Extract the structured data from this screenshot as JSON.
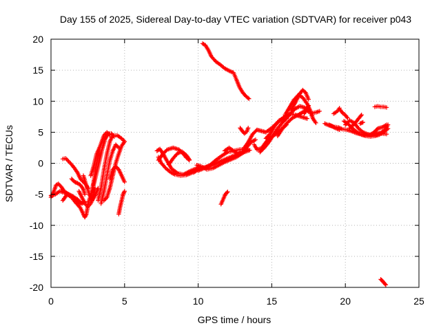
{
  "chart_data": {
    "type": "scatter",
    "title": "Day 155 of 2025, Sidereal Day-to-day VTEC variation (SDTVAR) for receiver p043",
    "xlabel": "GPS time / hours",
    "ylabel": "SDTVAR / TECUs",
    "xlim": [
      0,
      25
    ],
    "ylim": [
      -20,
      20
    ],
    "xticks": [
      0,
      5,
      10,
      15,
      20,
      25
    ],
    "yticks": [
      -20,
      -15,
      -10,
      -5,
      0,
      5,
      10,
      15,
      20
    ],
    "grid": true,
    "marker": "+",
    "color": "#ff0000",
    "segments": [
      [
        [
          0.0,
          -5.5
        ],
        [
          0.2,
          -4.5
        ],
        [
          0.35,
          -3.5
        ],
        [
          0.5,
          -3.3
        ],
        [
          0.7,
          -3.8
        ],
        [
          0.9,
          -4.5
        ],
        [
          1.2,
          -5.0
        ],
        [
          1.5,
          -5.5
        ],
        [
          1.8,
          -6.2
        ],
        [
          2.0,
          -6.5
        ]
      ],
      [
        [
          0.0,
          -5.2
        ],
        [
          0.3,
          -5.0
        ],
        [
          0.6,
          -4.5
        ],
        [
          1.0,
          -4.8
        ],
        [
          1.4,
          -5.2
        ],
        [
          1.8,
          -5.8
        ],
        [
          2.1,
          -6.5
        ],
        [
          2.3,
          -6.2
        ]
      ],
      [
        [
          0.8,
          -6.0
        ],
        [
          1.1,
          -5.0
        ],
        [
          1.4,
          -5.5
        ],
        [
          1.7,
          -6.4
        ],
        [
          2.0,
          -7.2
        ],
        [
          2.2,
          -8.2
        ],
        [
          2.3,
          -8.7
        ],
        [
          2.4,
          -8.2
        ],
        [
          2.5,
          -7.0
        ]
      ],
      [
        [
          0.8,
          0.7
        ],
        [
          1.0,
          0.8
        ],
        [
          1.2,
          0.3
        ],
        [
          1.4,
          -0.2
        ],
        [
          1.6,
          -0.8
        ],
        [
          1.8,
          -1.5
        ],
        [
          2.0,
          -2.5
        ],
        [
          2.2,
          -3.0
        ],
        [
          2.4,
          -3.5
        ],
        [
          2.5,
          -4.0
        ]
      ],
      [
        [
          1.4,
          -2.5
        ],
        [
          1.6,
          -3.0
        ],
        [
          1.8,
          -3.2
        ],
        [
          2.0,
          -3.5
        ],
        [
          2.2,
          -4.2
        ],
        [
          2.3,
          -5.0
        ]
      ],
      [
        [
          1.9,
          -4.5
        ],
        [
          2.1,
          -5.5
        ],
        [
          2.3,
          -6.5
        ],
        [
          2.5,
          -7.0
        ],
        [
          2.7,
          -6.5
        ],
        [
          2.85,
          -5.5
        ],
        [
          3.0,
          -4.0
        ]
      ],
      [
        [
          2.2,
          -2.0
        ],
        [
          2.4,
          -3.5
        ],
        [
          2.6,
          -5.0
        ],
        [
          2.8,
          -6.0
        ],
        [
          3.0,
          -5.2
        ],
        [
          3.2,
          -4.0
        ]
      ],
      [
        [
          2.5,
          -6.5
        ],
        [
          2.7,
          -5.2
        ],
        [
          2.9,
          -3.0
        ],
        [
          3.0,
          -1.5
        ],
        [
          3.1,
          0.0
        ],
        [
          3.2,
          1.5
        ],
        [
          3.3,
          2.5
        ]
      ],
      [
        [
          2.7,
          -2.0
        ],
        [
          2.9,
          -0.5
        ],
        [
          3.1,
          1.5
        ],
        [
          3.3,
          2.5
        ],
        [
          3.45,
          3.5
        ],
        [
          3.6,
          4.5
        ],
        [
          3.8,
          5.0
        ],
        [
          4.0,
          4.5
        ]
      ],
      [
        [
          2.9,
          -3.5
        ],
        [
          3.1,
          -1.5
        ],
        [
          3.3,
          0.5
        ],
        [
          3.5,
          2.5
        ],
        [
          3.7,
          4.0
        ],
        [
          3.9,
          4.8
        ],
        [
          4.1,
          4.8
        ],
        [
          4.3,
          4.3
        ]
      ],
      [
        [
          3.2,
          -6.0
        ],
        [
          3.4,
          -4.0
        ],
        [
          3.6,
          -1.0
        ],
        [
          3.8,
          1.5
        ],
        [
          4.0,
          3.5
        ],
        [
          4.2,
          4.5
        ],
        [
          4.5,
          4.5
        ],
        [
          4.8,
          4.0
        ],
        [
          5.0,
          3.5
        ]
      ],
      [
        [
          3.4,
          -6.5
        ],
        [
          3.6,
          -4.5
        ],
        [
          3.8,
          -2.0
        ],
        [
          4.0,
          0.5
        ],
        [
          4.2,
          2.0
        ],
        [
          4.4,
          3.0
        ],
        [
          4.6,
          2.5
        ]
      ],
      [
        [
          3.6,
          -6.0
        ],
        [
          3.8,
          -5.5
        ],
        [
          4.0,
          -4.0
        ],
        [
          4.2,
          -2.0
        ],
        [
          4.4,
          0.0
        ],
        [
          4.6,
          1.5
        ],
        [
          4.8,
          2.8
        ],
        [
          5.0,
          3.5
        ]
      ],
      [
        [
          4.0,
          -2.5
        ],
        [
          4.2,
          -1.0
        ],
        [
          4.4,
          -0.5
        ],
        [
          4.6,
          -1.0
        ],
        [
          4.8,
          -2.0
        ],
        [
          5.0,
          -3.0
        ]
      ],
      [
        [
          4.6,
          -8.2
        ],
        [
          4.7,
          -7.0
        ],
        [
          4.8,
          -6.0
        ],
        [
          4.9,
          -5.0
        ],
        [
          5.0,
          -4.5
        ]
      ],
      [
        [
          7.3,
          1.0
        ],
        [
          7.5,
          0.0
        ],
        [
          7.8,
          -0.8
        ],
        [
          8.1,
          -1.4
        ],
        [
          8.4,
          -1.8
        ],
        [
          8.8,
          -2.0
        ],
        [
          9.2,
          -1.9
        ],
        [
          9.6,
          -1.5
        ],
        [
          10.0,
          -1.0
        ]
      ],
      [
        [
          7.2,
          2.0
        ],
        [
          7.4,
          2.3
        ],
        [
          7.6,
          1.6
        ],
        [
          7.9,
          0.3
        ],
        [
          8.2,
          -0.9
        ],
        [
          8.6,
          -1.6
        ],
        [
          9.0,
          -1.8
        ],
        [
          9.5,
          -1.2
        ],
        [
          10.0,
          -0.7
        ]
      ],
      [
        [
          7.3,
          0.5
        ],
        [
          7.6,
          1.5
        ],
        [
          7.9,
          2.2
        ],
        [
          8.3,
          2.5
        ],
        [
          8.7,
          2.2
        ],
        [
          9.0,
          1.5
        ],
        [
          9.2,
          0.9
        ],
        [
          9.4,
          0.5
        ]
      ],
      [
        [
          8.0,
          -0.2
        ],
        [
          8.3,
          0.8
        ],
        [
          8.6,
          1.6
        ],
        [
          8.9,
          1.9
        ],
        [
          9.2,
          1.3
        ],
        [
          9.4,
          0.6
        ]
      ],
      [
        [
          9.7,
          -1.5
        ],
        [
          10.1,
          -0.8
        ],
        [
          10.5,
          -0.6
        ],
        [
          11.0,
          -0.3
        ],
        [
          11.5,
          0.3
        ],
        [
          12.0,
          0.8
        ],
        [
          12.5,
          1.3
        ],
        [
          13.0,
          1.7
        ],
        [
          13.5,
          2.1
        ]
      ],
      [
        [
          9.9,
          -0.3
        ],
        [
          10.2,
          -0.5
        ],
        [
          10.6,
          -1.0
        ],
        [
          11.0,
          -0.8
        ],
        [
          11.4,
          -0.3
        ],
        [
          11.8,
          0.2
        ],
        [
          12.2,
          0.6
        ],
        [
          12.6,
          1.0
        ],
        [
          13.0,
          1.6
        ],
        [
          13.4,
          2.3
        ]
      ],
      [
        [
          10.0,
          -1.2
        ],
        [
          10.4,
          -0.8
        ],
        [
          10.8,
          -0.3
        ],
        [
          11.2,
          0.5
        ],
        [
          11.6,
          1.2
        ],
        [
          12.0,
          1.8
        ],
        [
          12.4,
          2.0
        ],
        [
          12.8,
          2.2
        ],
        [
          13.2,
          2.3
        ]
      ],
      [
        [
          11.8,
          2.0
        ],
        [
          12.1,
          2.5
        ],
        [
          12.4,
          2.0
        ],
        [
          12.7,
          1.5
        ],
        [
          13.0,
          1.8
        ],
        [
          13.3,
          2.6
        ],
        [
          13.6,
          3.4
        ],
        [
          13.9,
          3.8
        ]
      ],
      [
        [
          10.3,
          19.3
        ],
        [
          10.5,
          19.0
        ],
        [
          10.7,
          18.2
        ],
        [
          10.9,
          17.2
        ],
        [
          11.2,
          16.4
        ],
        [
          11.5,
          15.9
        ],
        [
          11.8,
          15.3
        ],
        [
          12.1,
          14.9
        ],
        [
          12.4,
          14.6
        ],
        [
          12.6,
          13.5
        ],
        [
          12.8,
          12.3
        ],
        [
          13.0,
          11.5
        ],
        [
          13.2,
          10.9
        ],
        [
          13.45,
          10.4
        ]
      ],
      [
        [
          11.55,
          -6.6
        ],
        [
          11.7,
          -5.8
        ],
        [
          11.85,
          -5.0
        ],
        [
          12.0,
          -4.6
        ]
      ],
      [
        [
          12.85,
          5.7
        ],
        [
          13.0,
          5.2
        ],
        [
          13.15,
          4.8
        ],
        [
          13.3,
          5.1
        ],
        [
          13.4,
          5.7
        ]
      ],
      [
        [
          13.1,
          2.4
        ],
        [
          13.4,
          3.4
        ],
        [
          13.7,
          4.7
        ],
        [
          14.0,
          5.4
        ],
        [
          14.3,
          5.2
        ],
        [
          14.6,
          5.0
        ],
        [
          15.0,
          5.7
        ],
        [
          15.4,
          6.6
        ],
        [
          15.8,
          7.4
        ],
        [
          16.2,
          8.0
        ],
        [
          16.6,
          7.8
        ],
        [
          17.0,
          7.5
        ],
        [
          17.4,
          7.2
        ]
      ],
      [
        [
          13.8,
          3.0
        ],
        [
          14.0,
          2.2
        ],
        [
          14.3,
          2.4
        ],
        [
          14.6,
          3.4
        ],
        [
          14.9,
          4.2
        ],
        [
          15.2,
          4.6
        ],
        [
          15.6,
          5.4
        ],
        [
          16.0,
          6.2
        ]
      ],
      [
        [
          14.2,
          1.8
        ],
        [
          14.5,
          2.5
        ],
        [
          14.8,
          3.4
        ],
        [
          15.1,
          4.5
        ],
        [
          15.4,
          5.6
        ],
        [
          15.7,
          6.5
        ],
        [
          16.0,
          7.2
        ],
        [
          16.3,
          8.1
        ],
        [
          16.6,
          8.8
        ],
        [
          16.9,
          9.2
        ],
        [
          17.2,
          9.0
        ],
        [
          17.5,
          8.3
        ]
      ],
      [
        [
          14.6,
          4.0
        ],
        [
          14.9,
          4.8
        ],
        [
          15.2,
          6.0
        ],
        [
          15.5,
          6.9
        ],
        [
          15.8,
          7.2
        ]
      ],
      [
        [
          15.4,
          4.4
        ],
        [
          15.7,
          5.5
        ],
        [
          16.0,
          6.4
        ],
        [
          16.4,
          7.3
        ],
        [
          16.8,
          7.8
        ],
        [
          17.2,
          8.4
        ],
        [
          17.5,
          9.3
        ]
      ],
      [
        [
          15.9,
          7.8
        ],
        [
          16.2,
          9.0
        ],
        [
          16.5,
          10.2
        ],
        [
          16.8,
          11.0
        ],
        [
          17.1,
          10.6
        ],
        [
          17.4,
          9.6
        ],
        [
          17.6,
          8.6
        ],
        [
          17.75,
          7.6
        ]
      ],
      [
        [
          16.3,
          8.5
        ],
        [
          16.6,
          9.8
        ],
        [
          16.9,
          11.2
        ],
        [
          17.1,
          11.8
        ],
        [
          17.3,
          11.4
        ],
        [
          17.5,
          10.3
        ]
      ],
      [
        [
          17.2,
          8.0
        ],
        [
          17.4,
          8.7
        ],
        [
          17.6,
          8.4
        ],
        [
          17.8,
          7.2
        ],
        [
          18.0,
          6.5
        ]
      ],
      [
        [
          17.8,
          8.1
        ],
        [
          18.0,
          8.2
        ],
        [
          18.25,
          8.4
        ]
      ],
      [
        [
          18.6,
          6.4
        ],
        [
          18.9,
          6.1
        ],
        [
          19.2,
          5.9
        ],
        [
          19.5,
          5.8
        ],
        [
          19.8,
          5.5
        ],
        [
          20.1,
          5.4
        ],
        [
          20.4,
          5.2
        ],
        [
          20.7,
          4.9
        ],
        [
          21.0,
          4.7
        ],
        [
          21.3,
          4.6
        ],
        [
          21.6,
          4.5
        ],
        [
          21.9,
          4.7
        ],
        [
          22.2,
          4.9
        ],
        [
          22.5,
          4.8
        ],
        [
          22.8,
          4.7
        ]
      ],
      [
        [
          18.9,
          6.2
        ],
        [
          19.1,
          6.0
        ],
        [
          19.3,
          5.7
        ],
        [
          19.6,
          5.4
        ]
      ],
      [
        [
          19.9,
          6.8
        ],
        [
          20.2,
          6.3
        ],
        [
          20.5,
          5.6
        ],
        [
          20.8,
          5.0
        ],
        [
          21.1,
          4.6
        ],
        [
          21.4,
          4.4
        ],
        [
          21.7,
          4.3
        ],
        [
          22.0,
          4.4
        ],
        [
          22.3,
          4.6
        ],
        [
          22.6,
          5.0
        ],
        [
          22.9,
          5.6
        ]
      ],
      [
        [
          20.0,
          6.2
        ],
        [
          20.3,
          6.9
        ],
        [
          20.6,
          6.5
        ],
        [
          20.9,
          5.6
        ],
        [
          21.2,
          5.0
        ],
        [
          21.5,
          4.7
        ],
        [
          21.8,
          4.5
        ],
        [
          22.1,
          4.6
        ],
        [
          22.4,
          4.9
        ],
        [
          22.7,
          5.4
        ],
        [
          22.9,
          6.2
        ]
      ],
      [
        [
          21.6,
          4.5
        ],
        [
          21.9,
          4.9
        ],
        [
          22.2,
          5.6
        ],
        [
          22.5,
          5.8
        ],
        [
          22.8,
          6.2
        ]
      ],
      [
        [
          20.3,
          5.7
        ],
        [
          20.6,
          6.3
        ],
        [
          20.9,
          7.2
        ],
        [
          21.1,
          7.8
        ]
      ],
      [
        [
          19.2,
          8.0
        ],
        [
          19.35,
          8.2
        ],
        [
          19.5,
          8.5
        ],
        [
          19.6,
          8.9
        ]
      ],
      [
        [
          19.65,
          8.6
        ],
        [
          19.75,
          8.3
        ],
        [
          19.85,
          8.0
        ]
      ],
      [
        [
          19.95,
          7.9
        ],
        [
          20.05,
          7.6
        ],
        [
          20.15,
          7.3
        ]
      ],
      [
        [
          21.0,
          6.4
        ],
        [
          21.2,
          6.6
        ]
      ],
      [
        [
          22.0,
          9.1
        ],
        [
          22.2,
          9.2
        ],
        [
          22.4,
          9.1
        ],
        [
          22.6,
          9.1
        ],
        [
          22.8,
          9.0
        ]
      ],
      [
        [
          22.4,
          -18.7
        ],
        [
          22.5,
          -18.9
        ],
        [
          22.6,
          -19.2
        ],
        [
          22.75,
          -19.6
        ]
      ]
    ]
  }
}
